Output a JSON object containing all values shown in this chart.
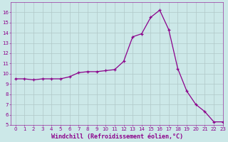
{
  "x": [
    0,
    1,
    2,
    3,
    4,
    5,
    6,
    7,
    8,
    9,
    10,
    11,
    12,
    13,
    14,
    15,
    16,
    17,
    18,
    19,
    20,
    21,
    22,
    23
  ],
  "y": [
    9.5,
    9.5,
    9.4,
    9.5,
    9.5,
    9.5,
    9.7,
    10.1,
    10.2,
    10.2,
    10.3,
    10.4,
    11.2,
    13.6,
    13.9,
    15.5,
    16.2,
    14.3,
    10.5,
    8.3,
    7.0,
    6.3,
    5.3,
    5.3
  ],
  "line_color": "#8B008B",
  "marker": "+",
  "marker_size": 3,
  "linewidth": 0.9,
  "xlabel": "Windchill (Refroidissement éolien,°C)",
  "xlim": [
    -0.5,
    23
  ],
  "ylim": [
    5,
    17
  ],
  "yticks": [
    5,
    6,
    7,
    8,
    9,
    10,
    11,
    12,
    13,
    14,
    15,
    16
  ],
  "xticks": [
    0,
    1,
    2,
    3,
    4,
    5,
    6,
    7,
    8,
    9,
    10,
    11,
    12,
    13,
    14,
    15,
    16,
    17,
    18,
    19,
    20,
    21,
    22,
    23
  ],
  "bg_color": "#cce8e8",
  "grid_color": "#b0c8c8",
  "tick_fontsize": 5.0,
  "xlabel_fontsize": 6.0,
  "line_purple": "#800080"
}
